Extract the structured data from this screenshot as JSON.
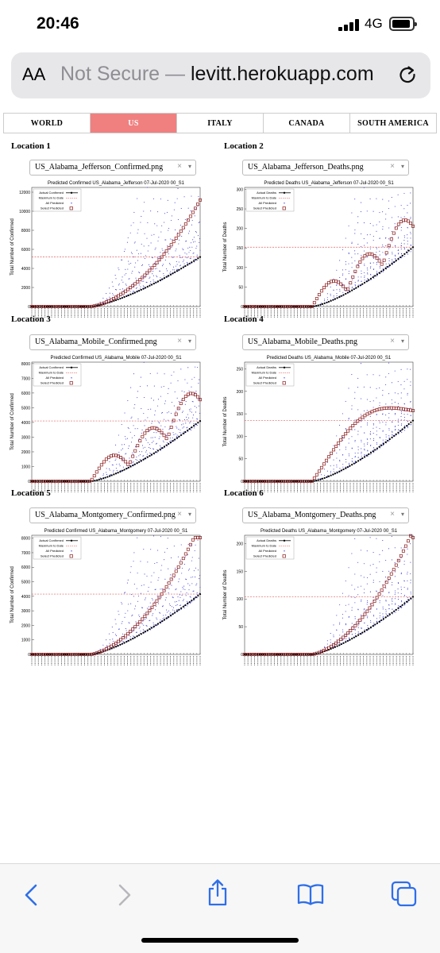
{
  "status": {
    "time": "20:46",
    "network": "4G"
  },
  "urlbar": {
    "aa": "AA",
    "not_secure": "Not Secure",
    "sep": " — ",
    "url": "levitt.herokuapp.com"
  },
  "tabs": [
    {
      "label": "WORLD",
      "active": false
    },
    {
      "label": "US",
      "active": true
    },
    {
      "label": "ITALY",
      "active": false
    },
    {
      "label": "CANADA",
      "active": false
    },
    {
      "label": "SOUTH AMERICA",
      "active": false
    }
  ],
  "legend_labels": {
    "confirmed": [
      "Actual Confirmed",
      "Maximum to Date",
      "All Predicted",
      "Select Predicted"
    ],
    "deaths": [
      "Actual Deaths",
      "Maximum to Date",
      "All Predicted",
      "Select Predicted"
    ]
  },
  "colors": {
    "actual": "#000000",
    "max": "#e06060",
    "all": "#3b3bd8",
    "select": "#8b1a1a",
    "tab_active": "#f08080"
  },
  "locations": [
    {
      "label": "Location 1",
      "file": "US_Alabama_Jefferson_Confirmed.png",
      "title": "Predicted Confirmed US_Alabama_Jefferson 07-Jul-2020 00_S1",
      "ylabel": "Total Number of Confirmed",
      "kind": "confirmed",
      "ticks": [
        "0",
        "2000",
        "4000",
        "6000",
        "8000",
        "10000",
        "12000"
      ],
      "ymax": 12500,
      "maxline": 5200,
      "actual_end": 5200,
      "select_shape": "rise"
    },
    {
      "label": "Location 2",
      "file": "US_Alabama_Jefferson_Deaths.png",
      "title": "Predicted Deaths US_Alabama_Jefferson 07-Jul-2020 00_S1",
      "ylabel": "Total Number of Deaths",
      "kind": "deaths",
      "ticks": [
        "0",
        "50",
        "100",
        "150",
        "200",
        "250",
        "300"
      ],
      "ymax": 305,
      "maxline": 152,
      "actual_end": 152,
      "select_shape": "humps"
    },
    {
      "label": "Location 3",
      "file": "US_Alabama_Mobile_Confirmed.png",
      "title": "Predicted Confirmed US_Alabama_Mobile 07-Jul-2020 00_S1",
      "ylabel": "Total Number of Confirmed",
      "kind": "confirmed",
      "ticks": [
        "0",
        "1000",
        "2000",
        "3000",
        "4000",
        "5000",
        "6000",
        "7000",
        "8000"
      ],
      "ymax": 8100,
      "maxline": 4100,
      "actual_end": 4100,
      "select_shape": "humps"
    },
    {
      "label": "Location 4",
      "file": "US_Alabama_Mobile_Deaths.png",
      "title": "Predicted Deaths US_Alabama_Mobile 07-Jul-2020 00_S1",
      "ylabel": "Total Number of Deaths",
      "kind": "deaths",
      "ticks": [
        "0",
        "50",
        "100",
        "150",
        "200",
        "250"
      ],
      "ymax": 265,
      "maxline": 135,
      "actual_end": 135,
      "select_shape": "plateau"
    },
    {
      "label": "Location 5",
      "file": "US_Alabama_Montgomery_Confirmed.png",
      "title": "Predicted Confirmed US_Alabama_Montgomery 07-Jul-2020 00_S1",
      "ylabel": "Total Number of Confirmed",
      "kind": "confirmed",
      "ticks": [
        "0",
        "1000",
        "2000",
        "3000",
        "4000",
        "5000",
        "6000",
        "7000",
        "8000"
      ],
      "ymax": 8200,
      "maxline": 4150,
      "actual_end": 4150,
      "select_shape": "rise"
    },
    {
      "label": "Location 6",
      "file": "US_Alabama_Montgomery_Deaths.png",
      "title": "Predicted Deaths US_Alabama_Montgomery 07-Jul-2020 00_S1",
      "ylabel": "Total Number of Deaths",
      "kind": "deaths",
      "ticks": [
        "0",
        "50",
        "100",
        "150",
        "200"
      ],
      "ymax": 215,
      "maxline": 104,
      "actual_end": 104,
      "select_shape": "rise"
    }
  ],
  "toolbar": {
    "back": "back-icon",
    "forward": "forward-icon",
    "share": "share-icon",
    "bookmarks": "book-icon",
    "tabs": "tabs-icon"
  }
}
